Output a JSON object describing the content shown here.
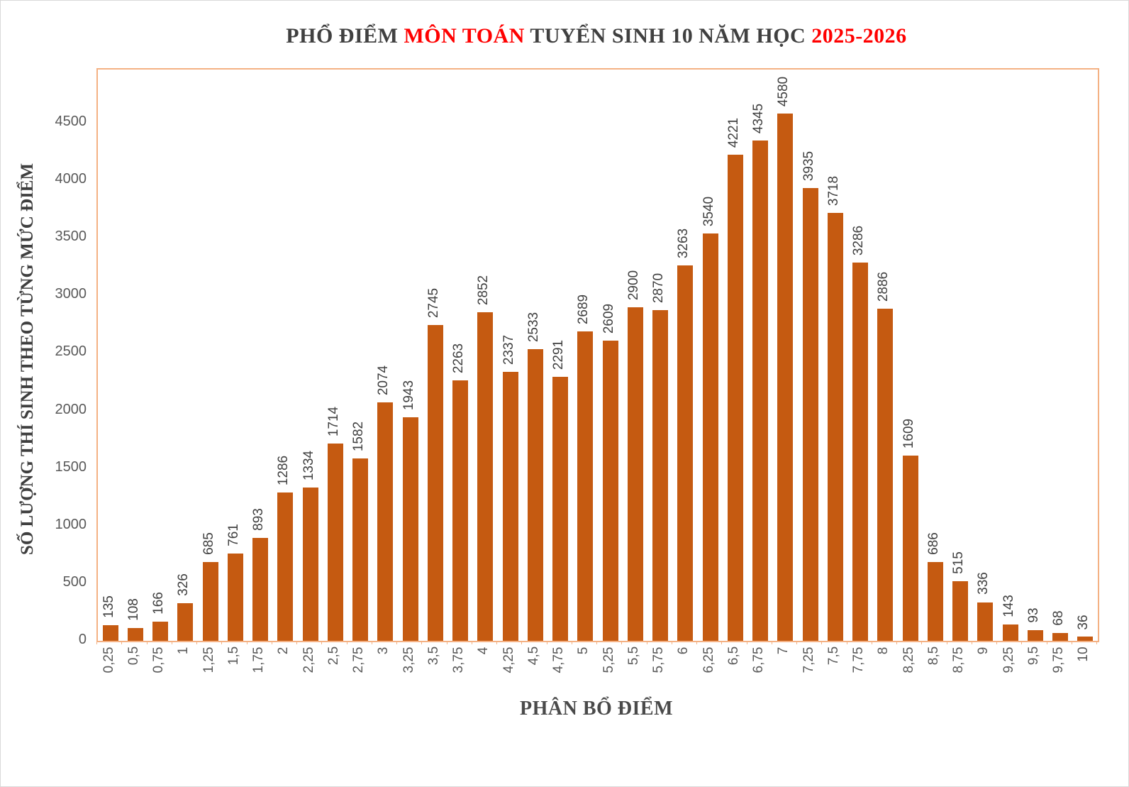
{
  "title": {
    "segments": [
      {
        "text": "PHỔ ĐIỂM ",
        "color": "#404040"
      },
      {
        "text": "MÔN TOÁN",
        "color": "#FF0000"
      },
      {
        "text": " TUYỂN SINH 10 NĂM HỌC ",
        "color": "#404040"
      },
      {
        "text": "2025-2026",
        "color": "#FF0000"
      }
    ]
  },
  "chart_data": {
    "type": "bar",
    "title": "PHỔ ĐIỂM MÔN TOÁN TUYỂN SINH 10 NĂM HỌC 2025-2026",
    "xlabel": "PHÂN BỔ ĐIỂM",
    "ylabel": "SỐ LƯỢNG THÍ SINH THEO TỪNG MỨC ĐIỂM",
    "categories": [
      "0,25",
      "0,5",
      "0,75",
      "1",
      "1,25",
      "1,5",
      "1,75",
      "2",
      "2,25",
      "2,5",
      "2,75",
      "3",
      "3,25",
      "3,5",
      "3,75",
      "4",
      "4,25",
      "4,5",
      "4,75",
      "5",
      "5,25",
      "5,5",
      "5,75",
      "6",
      "6,25",
      "6,5",
      "6,75",
      "7",
      "7,25",
      "7,5",
      "7,75",
      "8",
      "8,25",
      "8,5",
      "8,75",
      "9",
      "9,25",
      "9,5",
      "9,75",
      "10"
    ],
    "values": [
      135,
      108,
      166,
      326,
      685,
      761,
      893,
      1286,
      1334,
      1714,
      1582,
      2074,
      1943,
      2745,
      2263,
      2852,
      2337,
      2533,
      2291,
      2689,
      2609,
      2900,
      2870,
      3263,
      3540,
      4221,
      4345,
      4580,
      3935,
      3718,
      3286,
      2886,
      1609,
      686,
      515,
      336,
      143,
      93,
      68,
      36
    ],
    "yticks": [
      0,
      500,
      1000,
      1500,
      2000,
      2500,
      3000,
      3500,
      4000,
      4500
    ],
    "ylim": [
      0,
      4500
    ],
    "grid": false,
    "legend": false,
    "data_labels": true,
    "bar_color": "#C55A11",
    "plot_border_color": "#F4B183",
    "tick_label_color": "#595959",
    "value_label_color": "#404040"
  }
}
